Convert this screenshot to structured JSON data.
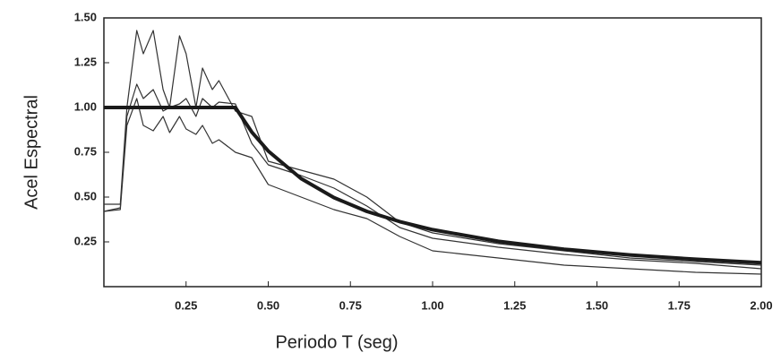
{
  "chart_data": {
    "type": "line",
    "xlabel": "Periodo T (seg)",
    "ylabel": "Acel Espectral",
    "x": [
      0,
      0.05,
      0.07,
      0.1,
      0.12,
      0.15,
      0.18,
      0.2,
      0.23,
      0.25,
      0.28,
      0.3,
      0.33,
      0.35,
      0.4,
      0.45,
      0.5,
      0.6,
      0.7,
      0.8,
      0.9,
      1.0,
      1.2,
      1.4,
      1.6,
      1.8,
      2.0
    ],
    "series": [
      {
        "color": "#333333",
        "line_width": 1.2,
        "values": [
          0.46,
          0.46,
          1.0,
          1.43,
          1.3,
          1.43,
          1.1,
          1.0,
          1.4,
          1.3,
          1.0,
          1.22,
          1.1,
          1.15,
          0.98,
          0.95,
          0.7,
          0.65,
          0.6,
          0.5,
          0.36,
          0.3,
          0.24,
          0.2,
          0.16,
          0.14,
          0.12
        ]
      },
      {
        "color": "#333333",
        "line_width": 1.2,
        "values": [
          0.42,
          0.44,
          0.95,
          1.13,
          1.05,
          1.1,
          0.98,
          1.0,
          1.02,
          1.05,
          0.95,
          1.05,
          1.0,
          1.03,
          1.02,
          0.8,
          0.68,
          0.62,
          0.55,
          0.45,
          0.33,
          0.27,
          0.22,
          0.18,
          0.15,
          0.13,
          0.1
        ]
      },
      {
        "color": "#333333",
        "line_width": 1.2,
        "values": [
          0.42,
          0.43,
          0.9,
          1.05,
          0.9,
          0.87,
          0.95,
          0.86,
          0.95,
          0.88,
          0.85,
          0.9,
          0.8,
          0.82,
          0.75,
          0.72,
          0.57,
          0.5,
          0.43,
          0.38,
          0.28,
          0.2,
          0.16,
          0.12,
          0.1,
          0.08,
          0.07
        ]
      },
      {
        "color": "#1a1a1a",
        "line_width": 4,
        "values": [
          1.0,
          1.0,
          1.0,
          1.0,
          1.0,
          1.0,
          1.0,
          1.0,
          1.0,
          1.0,
          1.0,
          1.0,
          1.0,
          1.0,
          1.0,
          0.863,
          0.757,
          0.603,
          0.497,
          0.42,
          0.363,
          0.318,
          0.253,
          0.209,
          0.177,
          0.153,
          0.134
        ]
      }
    ],
    "xlim": [
      0,
      2
    ],
    "xticks": [
      0.25,
      {
        "value": 0.5,
        "label": "0.50"
      },
      0.75,
      {
        "value": 1,
        "label": "1.00"
      },
      1.25,
      {
        "value": 1.5,
        "label": "1.50"
      },
      1.75,
      {
        "value": 2,
        "label": "2.00"
      }
    ],
    "ylim": [
      0,
      1.5
    ],
    "yticks": [
      0.25,
      {
        "value": 0.5,
        "label": "0.50"
      },
      0.75,
      {
        "value": 1,
        "label": "1.00"
      },
      1.25,
      {
        "value": 1.5,
        "label": "1.50"
      }
    ],
    "grid": false
  }
}
